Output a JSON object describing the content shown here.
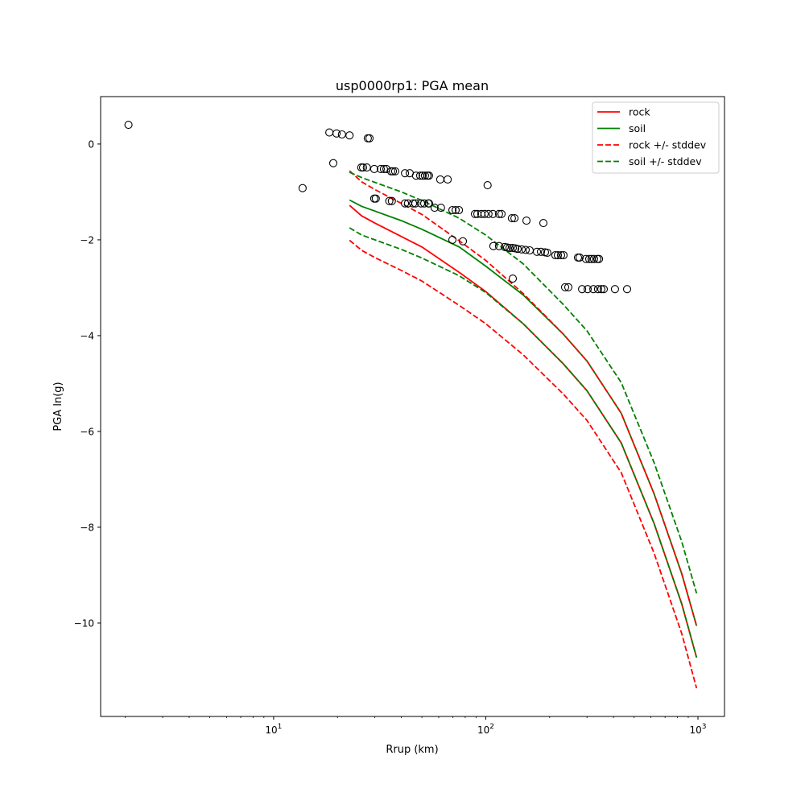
{
  "chart_data": {
    "type": "scatter",
    "title": "usp0000rp1: PGA mean",
    "xlabel": "Rrup (km)",
    "ylabel": "PGA ln(g)",
    "xscale": "log",
    "xlim": [
      1.53,
      1334
    ],
    "ylim": [
      -11.95,
      0.99
    ],
    "grid": false,
    "legend_placement": "top-right",
    "x_ticks": [
      {
        "value": 10,
        "base": "10",
        "exp": "1"
      },
      {
        "value": 100,
        "base": "10",
        "exp": "2"
      },
      {
        "value": 1000,
        "base": "10",
        "exp": "3"
      }
    ],
    "y_ticks": [
      {
        "value": 0,
        "label": "0"
      },
      {
        "value": -2,
        "label": "−2"
      },
      {
        "value": -4,
        "label": "−4"
      },
      {
        "value": -6,
        "label": "−6"
      },
      {
        "value": -8,
        "label": "−8"
      },
      {
        "value": -10,
        "label": "−10"
      }
    ],
    "curve_x": [
      22.8,
      26,
      30,
      40,
      50,
      75,
      100,
      150,
      232,
      300,
      435,
      621,
      839,
      985
    ],
    "series": [
      {
        "name": "rock",
        "color": "#ff0000",
        "dashed": false,
        "values": [
          -1.28,
          -1.5,
          -1.65,
          -1.93,
          -2.15,
          -2.68,
          -3.08,
          -3.75,
          -4.59,
          -5.15,
          -6.24,
          -7.92,
          -9.6,
          -10.72
        ]
      },
      {
        "name": "soil",
        "color": "#008000",
        "dashed": false,
        "values": [
          -1.17,
          -1.3,
          -1.4,
          -1.6,
          -1.78,
          -2.15,
          -2.55,
          -3.15,
          -3.97,
          -4.53,
          -5.62,
          -7.3,
          -8.97,
          -10.06
        ]
      },
      {
        "name": "rock +/- stddev",
        "color": "#ff0000",
        "dashed": true,
        "values": [
          -0.56,
          -0.79,
          -0.95,
          -1.24,
          -1.47,
          -2.02,
          -2.43,
          -3.12,
          -3.97,
          -4.53,
          -5.62,
          -7.3,
          -8.97,
          -10.06
        ]
      },
      {
        "name": "",
        "color": "#ff0000",
        "dashed": true,
        "values": [
          -2.01,
          -2.22,
          -2.37,
          -2.64,
          -2.86,
          -3.37,
          -3.75,
          -4.4,
          -5.22,
          -5.77,
          -6.86,
          -8.54,
          -10.22,
          -11.36
        ]
      },
      {
        "name": "soil +/- stddev",
        "color": "#008000",
        "dashed": true,
        "values": [
          -0.59,
          -0.7,
          -0.8,
          -1.0,
          -1.18,
          -1.55,
          -1.9,
          -2.5,
          -3.35,
          -3.9,
          -4.98,
          -6.65,
          -8.3,
          -9.38
        ]
      },
      {
        "name": "",
        "color": "#008000",
        "dashed": true,
        "values": [
          -1.75,
          -1.9,
          -2.0,
          -2.2,
          -2.38,
          -2.75,
          -3.1,
          -3.75,
          -4.59,
          -5.15,
          -6.24,
          -7.92,
          -9.6,
          -10.72
        ]
      }
    ],
    "legend": [
      {
        "label": "rock",
        "color": "#ff0000",
        "dashed": false
      },
      {
        "label": "soil",
        "color": "#008000",
        "dashed": false
      },
      {
        "label": "rock +/- stddev",
        "color": "#ff0000",
        "dashed": true
      },
      {
        "label": "soil +/- stddev",
        "color": "#008000",
        "dashed": true
      }
    ],
    "observations": [
      [
        2.07,
        0.4
      ],
      [
        13.7,
        -0.92
      ],
      [
        18.3,
        0.24
      ],
      [
        19.8,
        0.22
      ],
      [
        21.0,
        0.2
      ],
      [
        22.8,
        0.18
      ],
      [
        27.8,
        0.12
      ],
      [
        28.3,
        0.12
      ],
      [
        19.1,
        -0.4
      ],
      [
        25.9,
        -0.49
      ],
      [
        26.4,
        -0.49
      ],
      [
        27.5,
        -0.49
      ],
      [
        29.8,
        -0.52
      ],
      [
        32.0,
        -0.52
      ],
      [
        33.1,
        -0.52
      ],
      [
        34.0,
        -0.52
      ],
      [
        35.8,
        -0.57
      ],
      [
        36.5,
        -0.57
      ],
      [
        37.4,
        -0.57
      ],
      [
        41.6,
        -0.61
      ],
      [
        43.8,
        -0.61
      ],
      [
        46.9,
        -0.66
      ],
      [
        49.1,
        -0.66
      ],
      [
        50.4,
        -0.66
      ],
      [
        51.7,
        -0.66
      ],
      [
        53.1,
        -0.66
      ],
      [
        54.0,
        -0.66
      ],
      [
        61.0,
        -0.74
      ],
      [
        66.1,
        -0.74
      ],
      [
        102,
        -0.86
      ],
      [
        29.8,
        -1.14
      ],
      [
        30.3,
        -1.14
      ],
      [
        35.1,
        -1.19
      ],
      [
        36.1,
        -1.19
      ],
      [
        41.6,
        -1.24
      ],
      [
        43.0,
        -1.24
      ],
      [
        45.4,
        -1.24
      ],
      [
        46.6,
        -1.24
      ],
      [
        49.5,
        -1.24
      ],
      [
        51.3,
        -1.24
      ],
      [
        53.6,
        -1.24
      ],
      [
        54.0,
        -1.24
      ],
      [
        57.4,
        -1.33
      ],
      [
        61.5,
        -1.33
      ],
      [
        69.6,
        -1.38
      ],
      [
        72.1,
        -1.38
      ],
      [
        74.7,
        -1.38
      ],
      [
        88.9,
        -1.46
      ],
      [
        91.3,
        -1.46
      ],
      [
        95.3,
        -1.46
      ],
      [
        98.7,
        -1.46
      ],
      [
        103,
        -1.46
      ],
      [
        108,
        -1.46
      ],
      [
        115.5,
        -1.46
      ],
      [
        118.6,
        -1.46
      ],
      [
        132.8,
        -1.55
      ],
      [
        136.5,
        -1.55
      ],
      [
        155.5,
        -1.6
      ],
      [
        186.8,
        -1.65
      ],
      [
        69.6,
        -2.0
      ],
      [
        78.0,
        -2.03
      ],
      [
        108.6,
        -2.13
      ],
      [
        115.5,
        -2.13
      ],
      [
        122.8,
        -2.15
      ],
      [
        126.1,
        -2.16
      ],
      [
        129.5,
        -2.17
      ],
      [
        134.1,
        -2.17
      ],
      [
        137.6,
        -2.18
      ],
      [
        141.3,
        -2.19
      ],
      [
        147.6,
        -2.2
      ],
      [
        154.2,
        -2.21
      ],
      [
        161.0,
        -2.22
      ],
      [
        174.2,
        -2.25
      ],
      [
        182.0,
        -2.25
      ],
      [
        190.2,
        -2.26
      ],
      [
        195.0,
        -2.27
      ],
      [
        212.8,
        -2.32
      ],
      [
        218.6,
        -2.32
      ],
      [
        226.4,
        -2.32
      ],
      [
        232.4,
        -2.32
      ],
      [
        272.0,
        -2.37
      ],
      [
        276.9,
        -2.37
      ],
      [
        296.6,
        -2.4
      ],
      [
        307.4,
        -2.4
      ],
      [
        315.4,
        -2.4
      ],
      [
        323.8,
        -2.4
      ],
      [
        335.4,
        -2.4
      ],
      [
        341.6,
        -2.4
      ],
      [
        134.1,
        -2.81
      ],
      [
        236.6,
        -2.99
      ],
      [
        245.0,
        -2.99
      ],
      [
        284.4,
        -3.03
      ],
      [
        302.0,
        -3.03
      ],
      [
        321.4,
        -3.03
      ],
      [
        338.0,
        -3.03
      ],
      [
        350.6,
        -3.03
      ],
      [
        359.7,
        -3.03
      ],
      [
        406.4,
        -3.03
      ],
      [
        463.4,
        -3.03
      ]
    ]
  }
}
